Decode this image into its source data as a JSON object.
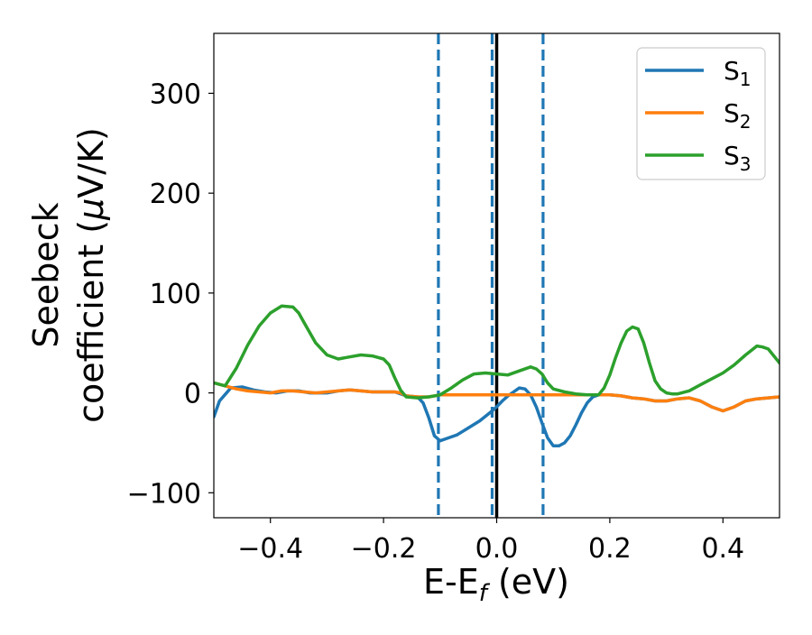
{
  "chart_data": {
    "type": "line",
    "title": "",
    "xlabel": "E-E",
    "xlabel_sub": "f",
    "xlabel_unit": " (eV)",
    "ylabel_line1": "Seebeck",
    "ylabel_line2": "coefficient  (",
    "ylabel_mu": "μ",
    "ylabel_unit": "V/K)",
    "xlim": [
      -0.5,
      0.5
    ],
    "ylim": [
      -125,
      360
    ],
    "xticks": [
      -0.4,
      -0.2,
      0.0,
      0.2,
      0.4
    ],
    "xtick_labels": [
      "−0.4",
      "−0.2",
      "0.0",
      "0.2",
      "0.4"
    ],
    "yticks": [
      -100,
      0,
      100,
      200,
      300
    ],
    "ytick_labels": [
      "−100",
      "0",
      "100",
      "200",
      "300"
    ],
    "grid": false,
    "legend_position": "top-right",
    "vlines": [
      {
        "x": -0.103,
        "style": "dashed",
        "color": "#1f77b4"
      },
      {
        "x": -0.008,
        "style": "dashed",
        "color": "#1f77b4"
      },
      {
        "x": 0.082,
        "style": "dashed",
        "color": "#1f77b4"
      },
      {
        "x": 0.0,
        "style": "solid",
        "color": "#000000"
      }
    ],
    "series": [
      {
        "name": "S",
        "name_sub": "1",
        "color": "#1f77b4",
        "points": [
          [
            -0.5,
            -24
          ],
          [
            -0.49,
            -8
          ],
          [
            -0.47,
            5
          ],
          [
            -0.45,
            6
          ],
          [
            -0.43,
            3
          ],
          [
            -0.41,
            1
          ],
          [
            -0.39,
            0
          ],
          [
            -0.37,
            2
          ],
          [
            -0.35,
            2
          ],
          [
            -0.33,
            0
          ],
          [
            -0.3,
            0
          ],
          [
            -0.28,
            2
          ],
          [
            -0.26,
            3
          ],
          [
            -0.24,
            2
          ],
          [
            -0.22,
            1
          ],
          [
            -0.2,
            1
          ],
          [
            -0.18,
            1
          ],
          [
            -0.16,
            -3
          ],
          [
            -0.14,
            -4
          ],
          [
            -0.13,
            -10
          ],
          [
            -0.12,
            -25
          ],
          [
            -0.11,
            -43
          ],
          [
            -0.1,
            -48
          ],
          [
            -0.09,
            -46
          ],
          [
            -0.07,
            -42
          ],
          [
            -0.05,
            -35
          ],
          [
            -0.03,
            -28
          ],
          [
            -0.01,
            -19
          ],
          [
            0.0,
            -14
          ],
          [
            0.01,
            -8
          ],
          [
            0.02,
            -3
          ],
          [
            0.03,
            1
          ],
          [
            0.04,
            5
          ],
          [
            0.05,
            4
          ],
          [
            0.06,
            -2
          ],
          [
            0.07,
            -14
          ],
          [
            0.08,
            -30
          ],
          [
            0.09,
            -45
          ],
          [
            0.1,
            -53
          ],
          [
            0.11,
            -53
          ],
          [
            0.12,
            -50
          ],
          [
            0.13,
            -43
          ],
          [
            0.14,
            -32
          ],
          [
            0.15,
            -20
          ],
          [
            0.16,
            -10
          ],
          [
            0.17,
            -4
          ],
          [
            0.18,
            -2
          ],
          [
            0.2,
            -2
          ],
          [
            0.22,
            -3
          ],
          [
            0.24,
            -5
          ],
          [
            0.26,
            -6
          ],
          [
            0.28,
            -8
          ],
          [
            0.3,
            -8
          ],
          [
            0.32,
            -6
          ],
          [
            0.34,
            -5
          ],
          [
            0.36,
            -8
          ],
          [
            0.38,
            -14
          ],
          [
            0.4,
            -18
          ],
          [
            0.42,
            -14
          ],
          [
            0.44,
            -8
          ],
          [
            0.46,
            -6
          ],
          [
            0.48,
            -5
          ],
          [
            0.5,
            -4
          ]
        ]
      },
      {
        "name": "S",
        "name_sub": "2",
        "color": "#ff7f0e",
        "points": [
          [
            -0.5,
            10
          ],
          [
            -0.48,
            7
          ],
          [
            -0.46,
            4
          ],
          [
            -0.44,
            2
          ],
          [
            -0.42,
            1
          ],
          [
            -0.4,
            0
          ],
          [
            -0.38,
            2
          ],
          [
            -0.36,
            2
          ],
          [
            -0.34,
            1
          ],
          [
            -0.32,
            0
          ],
          [
            -0.3,
            1
          ],
          [
            -0.28,
            2
          ],
          [
            -0.26,
            3
          ],
          [
            -0.24,
            2
          ],
          [
            -0.22,
            1
          ],
          [
            -0.2,
            1
          ],
          [
            -0.18,
            1
          ],
          [
            -0.17,
            0
          ],
          [
            -0.16,
            -3
          ],
          [
            -0.14,
            -4
          ],
          [
            -0.12,
            -4
          ],
          [
            -0.1,
            -2
          ],
          [
            0.18,
            -2
          ],
          [
            0.2,
            -2
          ],
          [
            0.22,
            -3
          ],
          [
            0.24,
            -5
          ],
          [
            0.26,
            -6
          ],
          [
            0.28,
            -8
          ],
          [
            0.3,
            -8
          ],
          [
            0.32,
            -6
          ],
          [
            0.34,
            -5
          ],
          [
            0.36,
            -8
          ],
          [
            0.38,
            -14
          ],
          [
            0.4,
            -18
          ],
          [
            0.42,
            -14
          ],
          [
            0.44,
            -8
          ],
          [
            0.46,
            -6
          ],
          [
            0.48,
            -5
          ],
          [
            0.5,
            -4
          ]
        ]
      },
      {
        "name": "S",
        "name_sub": "3",
        "color": "#2ca02c",
        "points": [
          [
            -0.5,
            10
          ],
          [
            -0.48,
            7
          ],
          [
            -0.46,
            25
          ],
          [
            -0.44,
            48
          ],
          [
            -0.42,
            67
          ],
          [
            -0.4,
            80
          ],
          [
            -0.38,
            87
          ],
          [
            -0.36,
            86
          ],
          [
            -0.35,
            80
          ],
          [
            -0.34,
            70
          ],
          [
            -0.32,
            50
          ],
          [
            -0.3,
            38
          ],
          [
            -0.28,
            34
          ],
          [
            -0.26,
            36
          ],
          [
            -0.24,
            38
          ],
          [
            -0.22,
            37
          ],
          [
            -0.2,
            34
          ],
          [
            -0.19,
            28
          ],
          [
            -0.18,
            15
          ],
          [
            -0.17,
            3
          ],
          [
            -0.16,
            -4
          ],
          [
            -0.14,
            -5
          ],
          [
            -0.12,
            -4
          ],
          [
            -0.1,
            -2
          ],
          [
            -0.08,
            5
          ],
          [
            -0.06,
            13
          ],
          [
            -0.04,
            19
          ],
          [
            -0.02,
            20
          ],
          [
            0.0,
            19
          ],
          [
            0.02,
            18
          ],
          [
            0.04,
            22
          ],
          [
            0.06,
            26
          ],
          [
            0.07,
            24
          ],
          [
            0.08,
            19
          ],
          [
            0.09,
            10
          ],
          [
            0.1,
            4
          ],
          [
            0.12,
            1
          ],
          [
            0.14,
            -1
          ],
          [
            0.16,
            -2
          ],
          [
            0.18,
            -2
          ],
          [
            0.19,
            5
          ],
          [
            0.2,
            18
          ],
          [
            0.21,
            35
          ],
          [
            0.22,
            50
          ],
          [
            0.23,
            62
          ],
          [
            0.24,
            66
          ],
          [
            0.25,
            64
          ],
          [
            0.26,
            50
          ],
          [
            0.27,
            30
          ],
          [
            0.28,
            12
          ],
          [
            0.29,
            4
          ],
          [
            0.3,
            0
          ],
          [
            0.31,
            -1
          ],
          [
            0.32,
            -1
          ],
          [
            0.34,
            2
          ],
          [
            0.36,
            8
          ],
          [
            0.38,
            14
          ],
          [
            0.4,
            20
          ],
          [
            0.42,
            28
          ],
          [
            0.44,
            38
          ],
          [
            0.46,
            47
          ],
          [
            0.47,
            46
          ],
          [
            0.48,
            44
          ],
          [
            0.5,
            30
          ]
        ]
      }
    ]
  }
}
